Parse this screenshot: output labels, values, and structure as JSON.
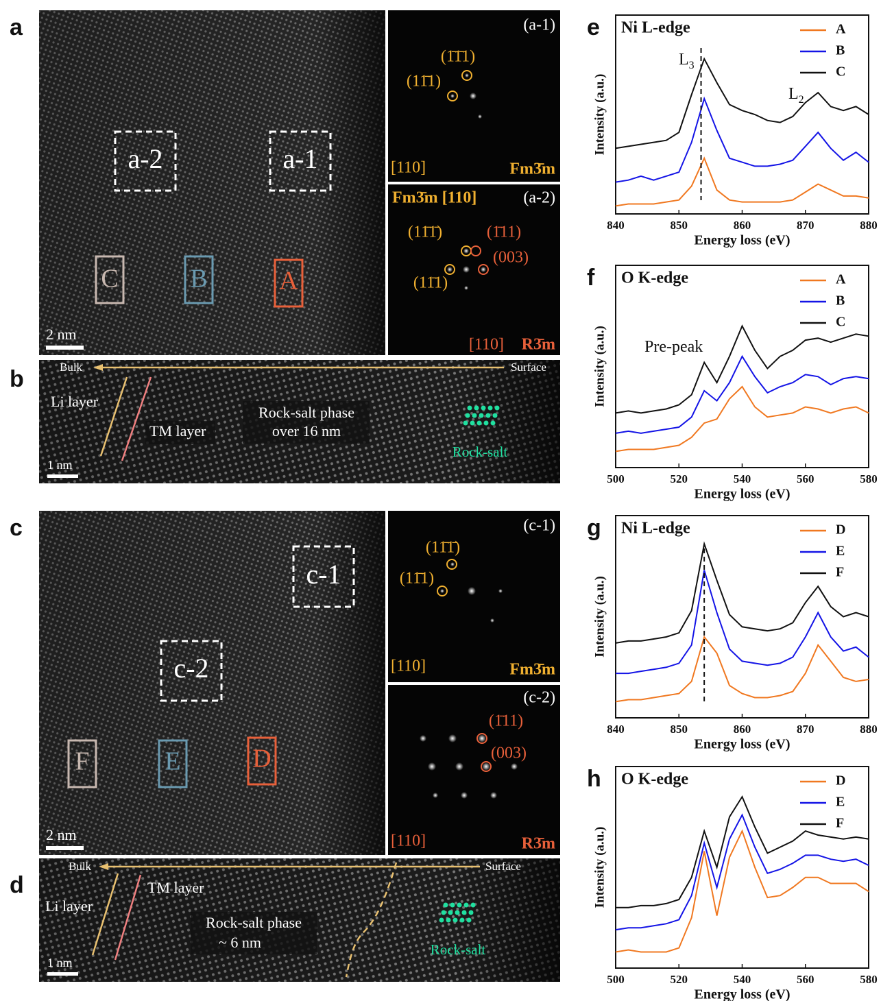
{
  "figure": {
    "a": {
      "label": "a",
      "boxes": [
        "a-2",
        "a-1"
      ],
      "regions": [
        "C",
        "B",
        "A"
      ],
      "scale": "2 nm"
    },
    "a1": {
      "label": "(a-1)",
      "spots": [
        "(1̄1̄1)",
        "(11̄1)"
      ],
      "zone": "[110]",
      "phase": "Fm3̄m"
    },
    "a2": {
      "label": "(a-2)",
      "header": "Fm3̄m [110]",
      "spots": [
        "(11̄1̄)",
        "(1̄11)",
        "(003)",
        "(11̄1)"
      ],
      "zone": "[110]",
      "phase": "R3̄m"
    },
    "b": {
      "label": "b",
      "bulk": "Bulk",
      "surface": "Surface",
      "li": "Li layer",
      "tm": "TM layer",
      "phase": "Rock-salt phase",
      "extent": "over 16 nm",
      "rocksalt": "Rock-salt",
      "scale": "1 nm"
    },
    "c": {
      "label": "c",
      "boxes": [
        "c-1",
        "c-2"
      ],
      "regions": [
        "F",
        "E",
        "D"
      ],
      "scale": "2 nm"
    },
    "c1": {
      "label": "(c-1)",
      "spots": [
        "(11̄1̄)",
        "(11̄1)"
      ],
      "zone": "[110]",
      "phase": "Fm3̄m"
    },
    "c2": {
      "label": "(c-2)",
      "spots": [
        "(1̄11)",
        "(003)"
      ],
      "zone": "[110]",
      "phase": "R3̄m"
    },
    "d": {
      "label": "d",
      "bulk": "Bulk",
      "surface": "Surface",
      "tm": "TM layer",
      "li": "Li layer",
      "phase": "Rock-salt phase",
      "extent": "~ 6 nm",
      "rocksalt": "Rock-salt",
      "scale": "1 nm"
    }
  },
  "chart_data": [
    {
      "type": "line",
      "label": "e",
      "title": "Ni L-edge",
      "xlabel": "Energy loss (eV)",
      "ylabel": "Intensity (a.u.)",
      "x": [
        840,
        842,
        844,
        846,
        848,
        850,
        852,
        854,
        856,
        858,
        860,
        862,
        864,
        866,
        868,
        870,
        872,
        874,
        876,
        878,
        880
      ],
      "xlim": [
        840,
        880
      ],
      "xticks": [
        840,
        850,
        860,
        870,
        880
      ],
      "ylim": [
        0,
        100
      ],
      "marker_x": 853.5,
      "annotations": [
        {
          "text": "L",
          "sub": "3"
        },
        {
          "text": "L",
          "sub": "2"
        }
      ],
      "series": [
        {
          "name": "A",
          "color": "#f07820",
          "values": [
            4,
            5,
            5,
            5,
            6,
            7,
            14,
            28,
            12,
            7,
            6,
            6,
            6,
            6,
            7,
            11,
            15,
            12,
            9,
            9,
            8
          ]
        },
        {
          "name": "B",
          "color": "#1414e6",
          "values": [
            16,
            17,
            19,
            17,
            19,
            21,
            36,
            58,
            42,
            28,
            26,
            24,
            24,
            25,
            27,
            34,
            41,
            33,
            27,
            31,
            26
          ]
        },
        {
          "name": "C",
          "color": "#111111",
          "values": [
            33,
            34,
            35,
            36,
            37,
            41,
            60,
            78,
            66,
            55,
            52,
            50,
            47,
            46,
            49,
            56,
            61,
            54,
            52,
            54,
            50
          ]
        }
      ]
    },
    {
      "type": "line",
      "label": "f",
      "title": "O K-edge",
      "xlabel": "Energy loss (eV)",
      "ylabel": "Intensity (a.u.)",
      "x": [
        500,
        504,
        508,
        512,
        516,
        520,
        524,
        528,
        532,
        536,
        540,
        544,
        548,
        552,
        556,
        560,
        564,
        568,
        572,
        576,
        580
      ],
      "xlim": [
        500,
        580
      ],
      "xticks": [
        500,
        520,
        540,
        560,
        580
      ],
      "ylim": [
        0,
        100
      ],
      "annotations": [
        {
          "text": "Pre-peak"
        }
      ],
      "series": [
        {
          "name": "A",
          "color": "#f07820",
          "values": [
            8,
            9,
            9,
            9,
            10,
            11,
            15,
            22,
            24,
            34,
            40,
            30,
            25,
            26,
            27,
            30,
            29,
            27,
            29,
            30,
            27
          ]
        },
        {
          "name": "B",
          "color": "#1414e6",
          "values": [
            17,
            18,
            17,
            18,
            19,
            20,
            25,
            38,
            33,
            42,
            55,
            45,
            37,
            40,
            42,
            46,
            45,
            41,
            44,
            45,
            44
          ]
        },
        {
          "name": "C",
          "color": "#111111",
          "values": [
            27,
            28,
            27,
            28,
            29,
            31,
            36,
            52,
            42,
            55,
            70,
            58,
            49,
            55,
            58,
            63,
            64,
            62,
            64,
            66,
            65
          ]
        }
      ]
    },
    {
      "type": "line",
      "label": "g",
      "title": "Ni L-edge",
      "xlabel": "Energy loss (eV)",
      "ylabel": "Intensity (a.u.)",
      "x": [
        840,
        842,
        844,
        846,
        848,
        850,
        852,
        854,
        856,
        858,
        860,
        862,
        864,
        866,
        868,
        870,
        872,
        874,
        876,
        878,
        880
      ],
      "xlim": [
        840,
        880
      ],
      "xticks": [
        840,
        850,
        860,
        870,
        880
      ],
      "ylim": [
        0,
        100
      ],
      "marker_x": 854,
      "series": [
        {
          "name": "D",
          "color": "#f07820",
          "values": [
            8,
            9,
            9,
            10,
            11,
            12,
            18,
            40,
            32,
            16,
            12,
            10,
            10,
            11,
            13,
            22,
            36,
            28,
            20,
            18,
            19
          ]
        },
        {
          "name": "E",
          "color": "#1414e6",
          "values": [
            22,
            22,
            23,
            24,
            25,
            27,
            36,
            73,
            52,
            34,
            28,
            27,
            26,
            27,
            30,
            40,
            52,
            40,
            33,
            35,
            30
          ]
        },
        {
          "name": "F",
          "color": "#111111",
          "values": [
            37,
            38,
            38,
            39,
            40,
            42,
            53,
            86,
            68,
            51,
            45,
            44,
            43,
            44,
            47,
            57,
            65,
            55,
            50,
            52,
            50
          ]
        }
      ]
    },
    {
      "type": "line",
      "label": "h",
      "title": "O K-edge",
      "xlabel": "Energy loss (eV)",
      "ylabel": "Intensity (a.u.)",
      "x": [
        500,
        504,
        508,
        512,
        516,
        520,
        524,
        528,
        532,
        536,
        540,
        544,
        548,
        552,
        556,
        560,
        564,
        568,
        572,
        576,
        580
      ],
      "xlim": [
        500,
        580
      ],
      "xticks": [
        500,
        520,
        540,
        560,
        580
      ],
      "ylim": [
        0,
        100
      ],
      "series": [
        {
          "name": "D",
          "color": "#f07820",
          "values": [
            8,
            9,
            8,
            8,
            8,
            10,
            25,
            58,
            26,
            55,
            68,
            50,
            35,
            36,
            40,
            45,
            45,
            42,
            42,
            42,
            38
          ]
        },
        {
          "name": "E",
          "color": "#1414e6",
          "values": [
            19,
            20,
            20,
            21,
            22,
            24,
            36,
            62,
            40,
            64,
            76,
            60,
            47,
            49,
            52,
            56,
            56,
            54,
            53,
            54,
            51
          ]
        },
        {
          "name": "F",
          "color": "#111111",
          "values": [
            30,
            30,
            31,
            31,
            32,
            34,
            45,
            68,
            50,
            75,
            85,
            70,
            57,
            60,
            63,
            68,
            66,
            65,
            64,
            65,
            64
          ]
        }
      ]
    }
  ]
}
